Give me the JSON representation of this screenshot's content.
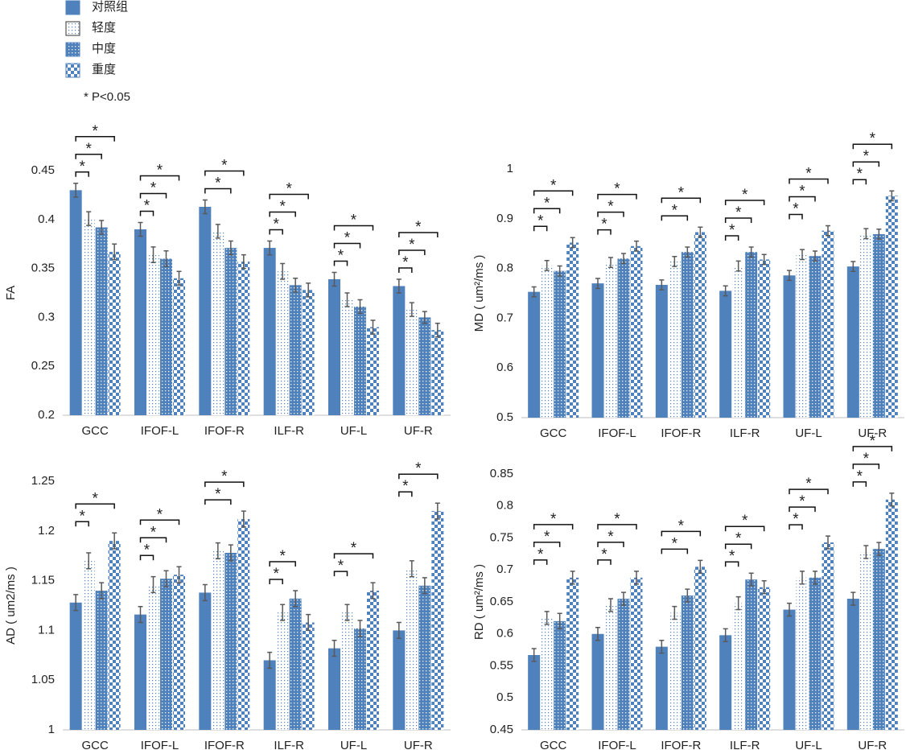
{
  "legend": [
    {
      "name": "对照组",
      "color": "#4f81bd",
      "pattern": "solid"
    },
    {
      "name": "轻度",
      "color": "#4f81bd",
      "pattern": "light-dots"
    },
    {
      "name": "中度",
      "color": "#4f81bd",
      "pattern": "dark-dots"
    },
    {
      "name": "重度",
      "color": "#4f81bd",
      "pattern": "checker"
    }
  ],
  "note": "* P<0.05",
  "chart_data": [
    {
      "type": "bar",
      "ylabel": "FA",
      "ylim": [
        0.2,
        0.45
      ],
      "yticks": [
        0.2,
        0.25,
        0.3,
        0.35,
        0.4,
        0.45
      ],
      "significance_label": "*",
      "categories": [
        "GCC",
        "IFOF-L",
        "IFOF-R",
        "ILF-R",
        "UF-L",
        "UF-R"
      ],
      "series": [
        {
          "values": [
            0.43,
            0.39,
            0.413,
            0.371,
            0.339,
            0.332
          ],
          "errors": [
            0.007,
            0.007,
            0.007,
            0.007,
            0.007,
            0.007
          ]
        },
        {
          "values": [
            0.401,
            0.364,
            0.388,
            0.347,
            0.318,
            0.308
          ],
          "errors": [
            0.007,
            0.008,
            0.007,
            0.008,
            0.007,
            0.007
          ],
          "significant": [
            true,
            true,
            false,
            true,
            true,
            true
          ]
        },
        {
          "values": [
            0.392,
            0.36,
            0.371,
            0.333,
            0.311,
            0.3
          ],
          "errors": [
            0.007,
            0.008,
            0.007,
            0.007,
            0.007,
            0.006
          ],
          "significant": [
            true,
            true,
            true,
            true,
            true,
            true
          ]
        },
        {
          "values": [
            0.367,
            0.34,
            0.357,
            0.328,
            0.29,
            0.287
          ],
          "errors": [
            0.008,
            0.007,
            0.007,
            0.007,
            0.007,
            0.007
          ],
          "significant": [
            true,
            true,
            true,
            true,
            true,
            true
          ]
        }
      ]
    },
    {
      "type": "bar",
      "ylabel": "MD ( um²/ms )",
      "ylim": [
        0.5,
        1
      ],
      "yticks": [
        0.5,
        0.6,
        0.7,
        0.8,
        0.9,
        1
      ],
      "significance_label": "*",
      "categories": [
        "GCC",
        "IFOF-L",
        "IFOF-R",
        "ILF-R",
        "UF-L",
        "UF-R"
      ],
      "series": [
        {
          "values": [
            0.753,
            0.77,
            0.767,
            0.755,
            0.786,
            0.804
          ],
          "errors": [
            0.01,
            0.01,
            0.01,
            0.01,
            0.01,
            0.01
          ]
        },
        {
          "values": [
            0.806,
            0.812,
            0.814,
            0.805,
            0.828,
            0.87
          ],
          "errors": [
            0.01,
            0.01,
            0.01,
            0.01,
            0.01,
            0.01
          ],
          "significant": [
            true,
            true,
            false,
            true,
            true,
            true
          ]
        },
        {
          "values": [
            0.795,
            0.82,
            0.833,
            0.833,
            0.825,
            0.869
          ],
          "errors": [
            0.01,
            0.01,
            0.01,
            0.01,
            0.01,
            0.01
          ],
          "significant": [
            true,
            true,
            true,
            true,
            true,
            true
          ]
        },
        {
          "values": [
            0.852,
            0.845,
            0.873,
            0.818,
            0.876,
            0.946
          ],
          "errors": [
            0.01,
            0.01,
            0.01,
            0.01,
            0.01,
            0.01
          ],
          "significant": [
            true,
            true,
            true,
            true,
            true,
            true
          ]
        }
      ]
    },
    {
      "type": "bar",
      "ylabel": "AD ( um2/ms )",
      "ylim": [
        1,
        1.25
      ],
      "yticks": [
        1,
        1.05,
        1.1,
        1.15,
        1.2,
        1.25
      ],
      "significance_label": "*",
      "categories": [
        "GCC",
        "IFOF-L",
        "IFOF-R",
        "ILF-R",
        "UF-L",
        "UF-R"
      ],
      "series": [
        {
          "values": [
            1.128,
            1.116,
            1.138,
            1.07,
            1.082,
            1.1
          ],
          "errors": [
            0.008,
            0.008,
            0.008,
            0.008,
            0.008,
            0.008
          ]
        },
        {
          "values": [
            1.17,
            1.146,
            1.18,
            1.118,
            1.118,
            1.162
          ],
          "errors": [
            0.008,
            0.008,
            0.008,
            0.008,
            0.008,
            0.008
          ],
          "significant": [
            true,
            true,
            false,
            true,
            true,
            true
          ]
        },
        {
          "values": [
            1.14,
            1.152,
            1.178,
            1.132,
            1.102,
            1.145
          ],
          "errors": [
            0.008,
            0.008,
            0.008,
            0.008,
            0.008,
            0.008
          ],
          "significant": [
            false,
            true,
            true,
            true,
            false,
            false
          ]
        },
        {
          "values": [
            1.19,
            1.156,
            1.212,
            1.108,
            1.14,
            1.22
          ],
          "errors": [
            0.008,
            0.008,
            0.008,
            0.008,
            0.008,
            0.008
          ],
          "significant": [
            true,
            true,
            true,
            false,
            true,
            true
          ]
        }
      ]
    },
    {
      "type": "bar",
      "ylabel": "RD ( um²/ms )",
      "ylim": [
        0.45,
        0.85
      ],
      "yticks": [
        0.45,
        0.5,
        0.55,
        0.6,
        0.65,
        0.7,
        0.75,
        0.8,
        0.85
      ],
      "significance_label": "*",
      "categories": [
        "GCC",
        "IFOF-L",
        "IFOF-R",
        "ILF-R",
        "UF-L",
        "UF-R"
      ],
      "series": [
        {
          "values": [
            0.567,
            0.6,
            0.58,
            0.598,
            0.638,
            0.655
          ],
          "errors": [
            0.01,
            0.01,
            0.01,
            0.01,
            0.01,
            0.01
          ]
        },
        {
          "values": [
            0.625,
            0.645,
            0.633,
            0.648,
            0.688,
            0.728
          ],
          "errors": [
            0.01,
            0.01,
            0.01,
            0.01,
            0.01,
            0.01
          ],
          "significant": [
            true,
            true,
            false,
            true,
            true,
            true
          ]
        },
        {
          "values": [
            0.62,
            0.655,
            0.66,
            0.685,
            0.688,
            0.733
          ],
          "errors": [
            0.012,
            0.01,
            0.01,
            0.01,
            0.01,
            0.01
          ],
          "significant": [
            true,
            true,
            true,
            true,
            true,
            true
          ]
        },
        {
          "values": [
            0.688,
            0.688,
            0.705,
            0.673,
            0.743,
            0.81
          ],
          "errors": [
            0.01,
            0.01,
            0.01,
            0.01,
            0.01,
            0.01
          ],
          "significant": [
            true,
            true,
            true,
            true,
            true,
            true
          ]
        }
      ]
    }
  ]
}
